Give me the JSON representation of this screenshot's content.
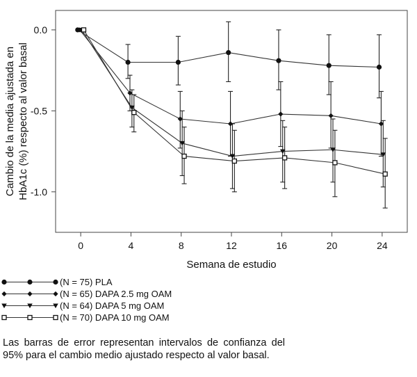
{
  "chart_data": {
    "type": "line",
    "xlabel": "Semana de estudio",
    "ylabel_lines": [
      "Cambio de la media ajustada en",
      "HbA1c (%) respecto al valor basal"
    ],
    "x_ticks": [
      0,
      4,
      8,
      12,
      16,
      20,
      24
    ],
    "y_ticks": [
      0.0,
      -0.5,
      -1.0
    ],
    "y_tick_labels": [
      "0.0",
      "-0.5",
      "-1.0"
    ],
    "xlim": [
      -2,
      26
    ],
    "ylim": [
      -1.25,
      0.12
    ],
    "grid": false,
    "legend_position": "bottom-left, below plot",
    "series": [
      {
        "name": "(N = 75) PLA",
        "marker": "circle",
        "x": [
          0,
          4,
          8,
          12,
          16,
          20,
          24
        ],
        "y": [
          0.0,
          -0.2,
          -0.2,
          -0.14,
          -0.19,
          -0.22,
          -0.23
        ],
        "ci_low": [
          0.0,
          -0.3,
          -0.34,
          -0.32,
          -0.37,
          -0.4,
          -0.42
        ],
        "ci_high": [
          0.0,
          -0.09,
          -0.04,
          0.05,
          0.0,
          -0.03,
          -0.03
        ]
      },
      {
        "name": "(N = 65) DAPA 2.5 mg OAM",
        "marker": "diamond",
        "x": [
          0,
          4,
          8,
          12,
          16,
          20,
          24
        ],
        "y": [
          0.0,
          -0.39,
          -0.55,
          -0.58,
          -0.52,
          -0.53,
          -0.58
        ],
        "ci_low": [
          0.0,
          -0.5,
          -0.73,
          -0.78,
          -0.72,
          -0.73,
          -0.78
        ],
        "ci_high": [
          0.0,
          -0.28,
          -0.38,
          -0.38,
          -0.32,
          -0.32,
          -0.38
        ]
      },
      {
        "name": "(N = 64) DAPA 5 mg OAM",
        "marker": "triangle-down",
        "x": [
          0,
          4,
          8,
          12,
          16,
          20,
          24
        ],
        "y": [
          0.0,
          -0.48,
          -0.7,
          -0.78,
          -0.75,
          -0.74,
          -0.77
        ],
        "ci_low": [
          0.0,
          -0.6,
          -0.9,
          -0.98,
          -0.94,
          -0.94,
          -0.97
        ],
        "ci_high": [
          0.0,
          -0.37,
          -0.5,
          -0.58,
          -0.56,
          -0.55,
          -0.56
        ]
      },
      {
        "name": "(N = 70) DAPA 10 mg OAM",
        "marker": "square-open",
        "x": [
          0,
          4,
          8,
          12,
          16,
          20,
          24
        ],
        "y": [
          0.0,
          -0.51,
          -0.78,
          -0.81,
          -0.79,
          -0.82,
          -0.89
        ],
        "ci_low": [
          0.0,
          -0.63,
          -0.95,
          -1.0,
          -0.98,
          -1.03,
          -1.1
        ],
        "ci_high": [
          0.0,
          -0.4,
          -0.6,
          -0.62,
          -0.6,
          -0.62,
          -0.67
        ]
      }
    ]
  },
  "footnote": "Las barras de error representan intervalos de confianza del 95% para el cambio medio ajustado respecto al valor basal."
}
